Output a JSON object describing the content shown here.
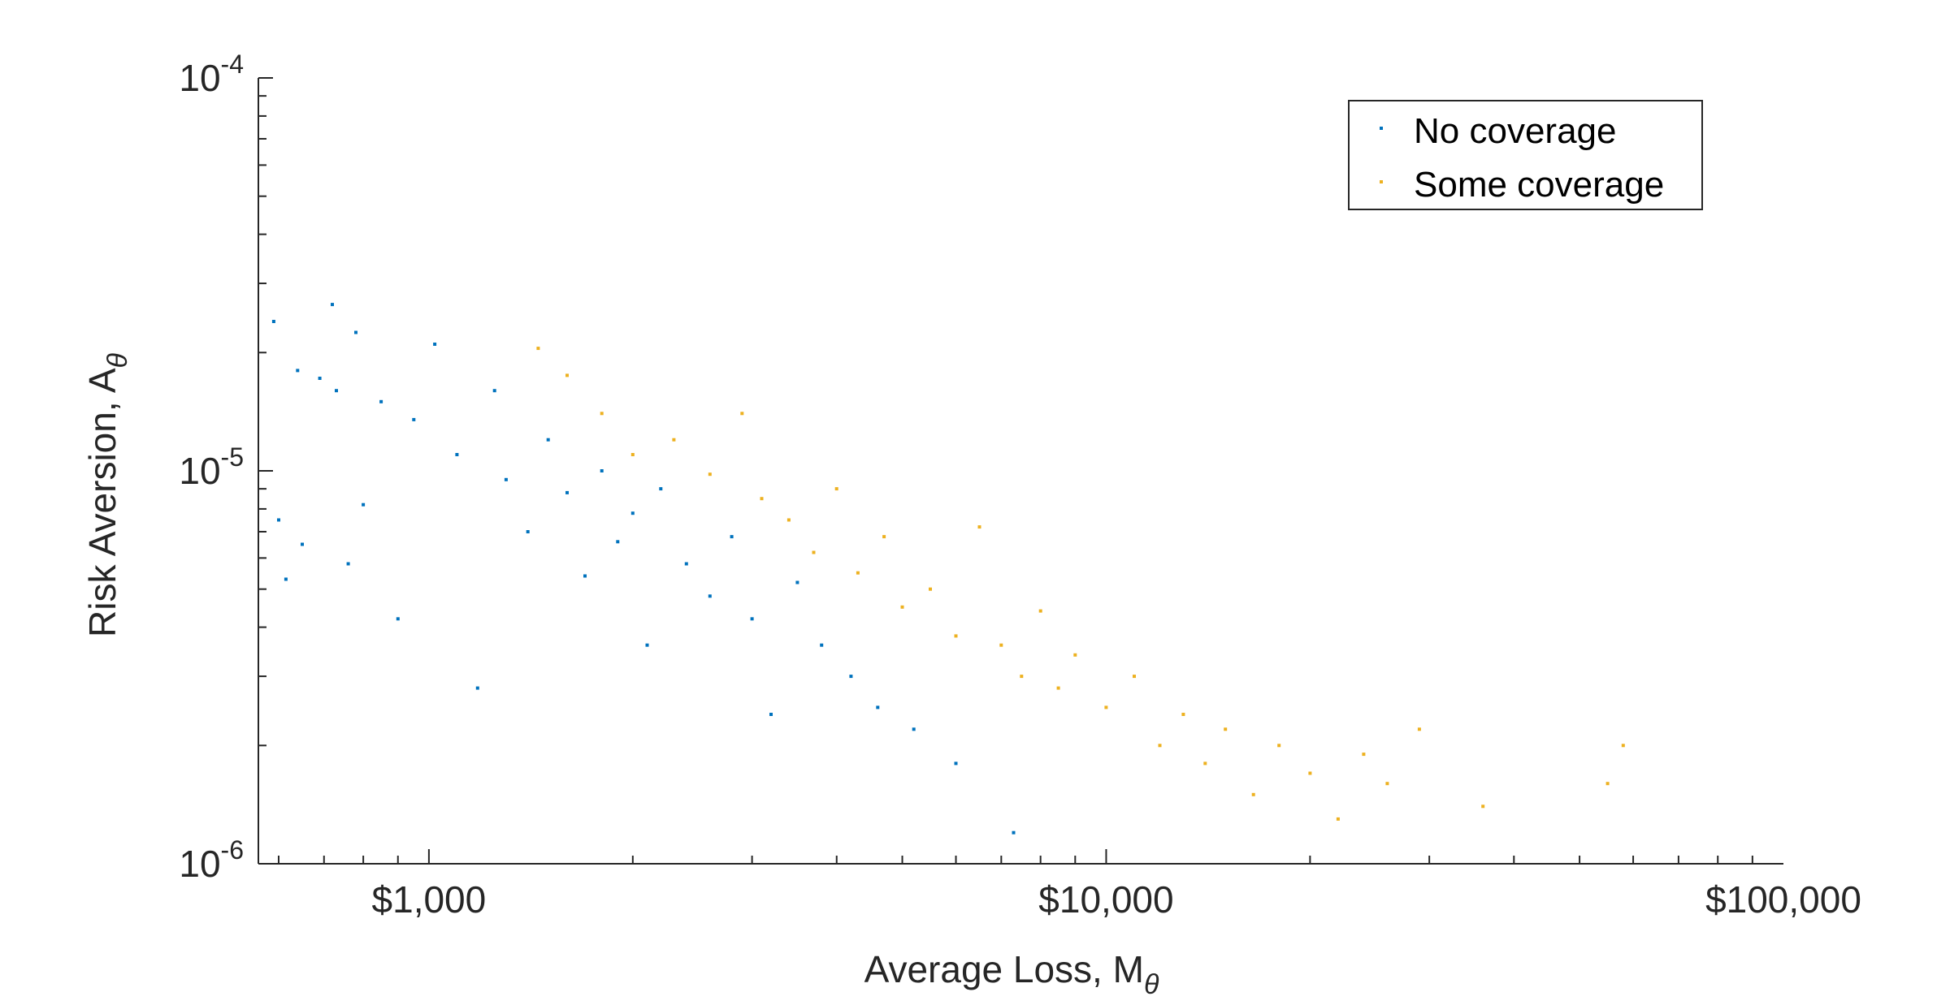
{
  "chart_data": {
    "type": "scatter",
    "title": "",
    "xlabel": "Average Loss,  M",
    "xlabel_subscript": "θ",
    "ylabel": "Risk Aversion, A",
    "ylabel_subscript": "θ",
    "x_scale": "log",
    "y_scale": "log",
    "xlim": [
      560,
      100000
    ],
    "ylim": [
      1e-06,
      0.0001
    ],
    "x_ticks": [
      {
        "value": 1000,
        "label": "$1,000"
      },
      {
        "value": 10000,
        "label": "$10,000"
      },
      {
        "value": 100000,
        "label": "$100,000"
      }
    ],
    "y_ticks": [
      {
        "value": 1e-06,
        "base": "10",
        "exponent": "-6"
      },
      {
        "value": 1e-05,
        "base": "10",
        "exponent": "-5"
      },
      {
        "value": 0.0001,
        "base": "10",
        "exponent": "-4"
      }
    ],
    "grid": false,
    "legend_position": "top-right",
    "series": [
      {
        "name": "No coverage",
        "color": "#0072BD",
        "points": [
          [
            590,
            2.4e-05
          ],
          [
            600,
            7.5e-06
          ],
          [
            615,
            5.3e-06
          ],
          [
            640,
            1.8e-05
          ],
          [
            650,
            6.5e-06
          ],
          [
            690,
            1.72e-05
          ],
          [
            720,
            2.65e-05
          ],
          [
            730,
            1.6e-05
          ],
          [
            760,
            5.8e-06
          ],
          [
            780,
            2.25e-05
          ],
          [
            800,
            8.2e-06
          ],
          [
            850,
            1.5e-05
          ],
          [
            900,
            4.2e-06
          ],
          [
            950,
            1.35e-05
          ],
          [
            1020,
            2.1e-05
          ],
          [
            1100,
            1.1e-05
          ],
          [
            1180,
            2.8e-06
          ],
          [
            1250,
            1.6e-05
          ],
          [
            1300,
            9.5e-06
          ],
          [
            1400,
            7e-06
          ],
          [
            1500,
            1.2e-05
          ],
          [
            1600,
            8.8e-06
          ],
          [
            1700,
            5.4e-06
          ],
          [
            1800,
            1e-05
          ],
          [
            1900,
            6.6e-06
          ],
          [
            2000,
            7.8e-06
          ],
          [
            2100,
            3.6e-06
          ],
          [
            2200,
            9e-06
          ],
          [
            2400,
            5.8e-06
          ],
          [
            2600,
            4.8e-06
          ],
          [
            2800,
            6.8e-06
          ],
          [
            3000,
            4.2e-06
          ],
          [
            3200,
            2.4e-06
          ],
          [
            3500,
            5.2e-06
          ],
          [
            3800,
            3.6e-06
          ],
          [
            4200,
            3e-06
          ],
          [
            4600,
            2.5e-06
          ],
          [
            5200,
            2.2e-06
          ],
          [
            6000,
            1.8e-06
          ],
          [
            7300,
            1.2e-06
          ]
        ]
      },
      {
        "name": "Some coverage",
        "color": "#EDB120",
        "points": [
          [
            1450,
            2.05e-05
          ],
          [
            1600,
            1.75e-05
          ],
          [
            1800,
            1.4e-05
          ],
          [
            2000,
            1.1e-05
          ],
          [
            2300,
            1.2e-05
          ],
          [
            2600,
            9.8e-06
          ],
          [
            2900,
            1.4e-05
          ],
          [
            3100,
            8.5e-06
          ],
          [
            3400,
            7.5e-06
          ],
          [
            3700,
            6.2e-06
          ],
          [
            4000,
            9e-06
          ],
          [
            4300,
            5.5e-06
          ],
          [
            4700,
            6.8e-06
          ],
          [
            5000,
            4.5e-06
          ],
          [
            5500,
            5e-06
          ],
          [
            6000,
            3.8e-06
          ],
          [
            6500,
            7.2e-06
          ],
          [
            7000,
            3.6e-06
          ],
          [
            7500,
            3e-06
          ],
          [
            8000,
            4.4e-06
          ],
          [
            8500,
            2.8e-06
          ],
          [
            9000,
            3.4e-06
          ],
          [
            10000,
            2.5e-06
          ],
          [
            11000,
            3e-06
          ],
          [
            12000,
            2e-06
          ],
          [
            13000,
            2.4e-06
          ],
          [
            14000,
            1.8e-06
          ],
          [
            15000,
            2.2e-06
          ],
          [
            16500,
            1.5e-06
          ],
          [
            18000,
            2e-06
          ],
          [
            20000,
            1.7e-06
          ],
          [
            22000,
            1.3e-06
          ],
          [
            24000,
            1.9e-06
          ],
          [
            26000,
            1.6e-06
          ],
          [
            29000,
            2.2e-06
          ],
          [
            36000,
            1.4e-06
          ],
          [
            55000,
            1.6e-06
          ],
          [
            58000,
            2e-06
          ]
        ]
      }
    ]
  }
}
